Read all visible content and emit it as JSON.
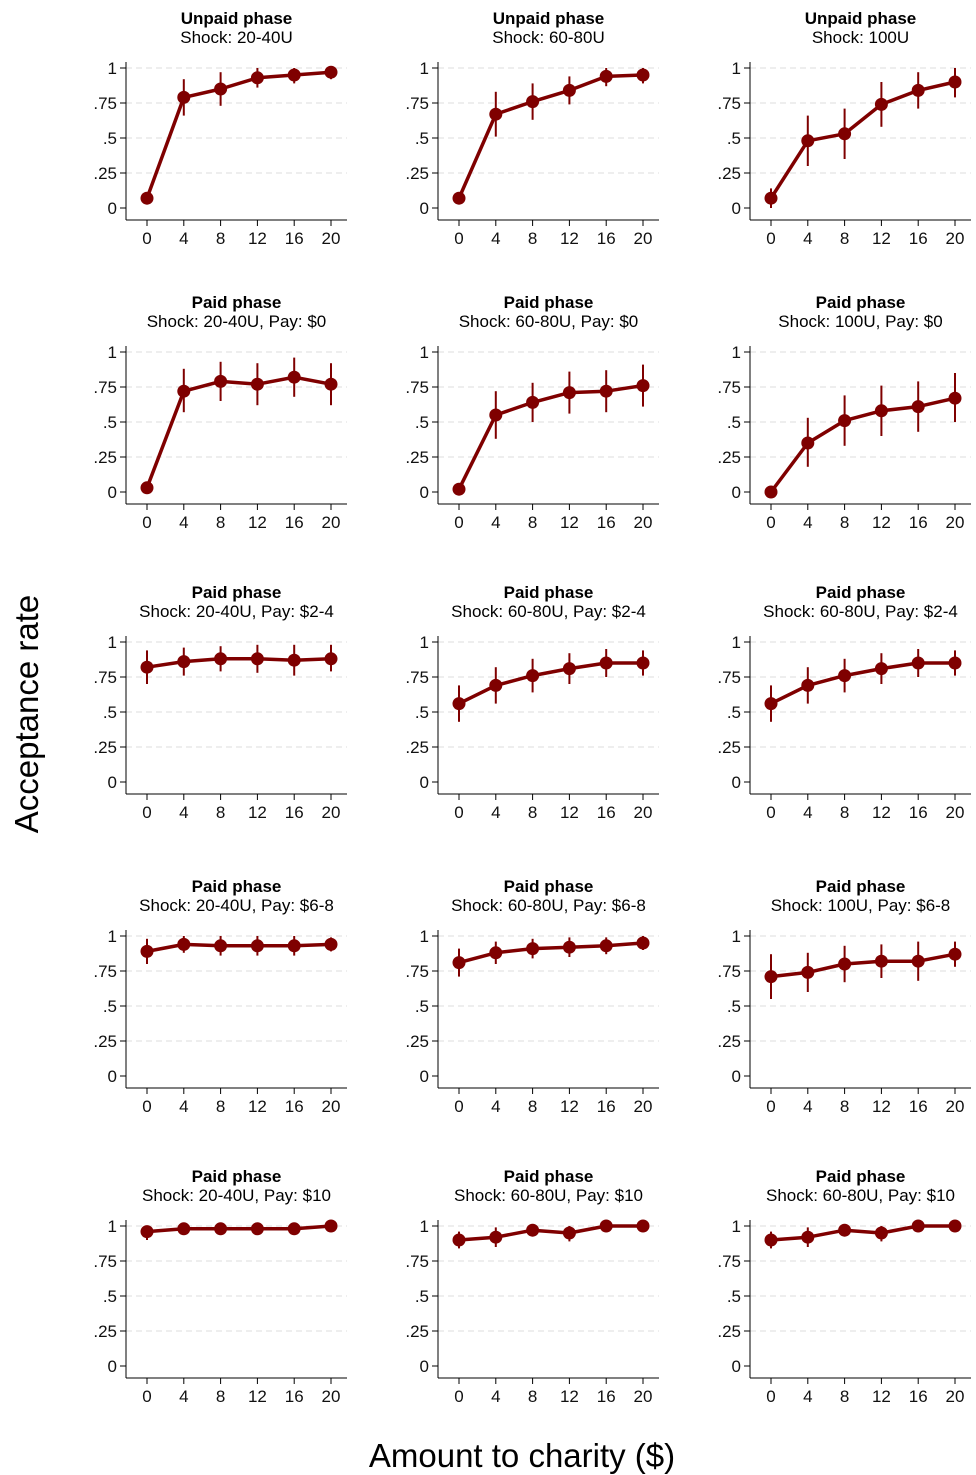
{
  "figure": {
    "y_axis_title": "Acceptance rate",
    "x_axis_title": "Amount to charity ($)",
    "series_color": "#7f0000",
    "grid_color": "#dddddd"
  },
  "chart_data": [
    {
      "type": "line",
      "title": "Unpaid phase",
      "subtitle": "Shock: 20-40U",
      "x": [
        0,
        4,
        8,
        12,
        16,
        20
      ],
      "yticks": [
        "0",
        ".25",
        ".5",
        ".75",
        "1"
      ],
      "ylim": [
        0,
        1
      ],
      "series": [
        {
          "values": [
            0.07,
            0.79,
            0.85,
            0.93,
            0.95,
            0.97
          ],
          "ci_low": [
            0.03,
            0.66,
            0.73,
            0.86,
            0.89,
            0.92
          ],
          "ci_high": [
            0.11,
            0.92,
            0.97,
            1.0,
            1.0,
            1.0
          ]
        }
      ],
      "grid": true
    },
    {
      "type": "line",
      "title": "Unpaid phase",
      "subtitle": "Shock: 60-80U",
      "x": [
        0,
        4,
        8,
        12,
        16,
        20
      ],
      "yticks": [
        "0",
        ".25",
        ".5",
        ".75",
        "1"
      ],
      "ylim": [
        0,
        1
      ],
      "series": [
        {
          "values": [
            0.07,
            0.67,
            0.76,
            0.84,
            0.94,
            0.95
          ],
          "ci_low": [
            0.03,
            0.51,
            0.63,
            0.74,
            0.87,
            0.89
          ],
          "ci_high": [
            0.11,
            0.83,
            0.89,
            0.94,
            1.0,
            1.0
          ]
        }
      ],
      "grid": true
    },
    {
      "type": "line",
      "title": "Unpaid phase",
      "subtitle": "Shock: 100U",
      "x": [
        0,
        4,
        8,
        12,
        16,
        20
      ],
      "yticks": [
        "0",
        ".25",
        ".5",
        ".75",
        "1"
      ],
      "ylim": [
        0,
        1
      ],
      "series": [
        {
          "values": [
            0.07,
            0.48,
            0.53,
            0.74,
            0.84,
            0.9
          ],
          "ci_low": [
            0.0,
            0.3,
            0.35,
            0.58,
            0.71,
            0.79
          ],
          "ci_high": [
            0.14,
            0.66,
            0.71,
            0.9,
            0.97,
            1.0
          ]
        }
      ],
      "grid": true
    },
    {
      "type": "line",
      "title": "Paid phase",
      "subtitle": "Shock: 20-40U, Pay: $0",
      "x": [
        0,
        4,
        8,
        12,
        16,
        20
      ],
      "yticks": [
        "0",
        ".25",
        ".5",
        ".75",
        "1"
      ],
      "ylim": [
        0,
        1
      ],
      "series": [
        {
          "values": [
            0.03,
            0.72,
            0.79,
            0.77,
            0.82,
            0.77
          ],
          "ci_low": [
            0.0,
            0.57,
            0.65,
            0.62,
            0.68,
            0.62
          ],
          "ci_high": [
            0.06,
            0.88,
            0.93,
            0.92,
            0.96,
            0.92
          ]
        }
      ],
      "grid": true
    },
    {
      "type": "line",
      "title": "Paid phase",
      "subtitle": "Shock: 60-80U, Pay: $0",
      "x": [
        0,
        4,
        8,
        12,
        16,
        20
      ],
      "yticks": [
        "0",
        ".25",
        ".5",
        ".75",
        "1"
      ],
      "ylim": [
        0,
        1
      ],
      "series": [
        {
          "values": [
            0.02,
            0.55,
            0.64,
            0.71,
            0.72,
            0.76
          ],
          "ci_low": [
            0.0,
            0.38,
            0.5,
            0.56,
            0.57,
            0.61
          ],
          "ci_high": [
            0.04,
            0.72,
            0.78,
            0.86,
            0.87,
            0.91
          ]
        }
      ],
      "grid": true
    },
    {
      "type": "line",
      "title": "Paid phase",
      "subtitle": "Shock: 100U, Pay: $0",
      "x": [
        0,
        4,
        8,
        12,
        16,
        20
      ],
      "yticks": [
        "0",
        ".25",
        ".5",
        ".75",
        "1"
      ],
      "ylim": [
        0,
        1
      ],
      "series": [
        {
          "values": [
            0.0,
            0.35,
            0.51,
            0.58,
            0.61,
            0.67
          ],
          "ci_low": [
            0.0,
            0.18,
            0.33,
            0.4,
            0.43,
            0.5
          ],
          "ci_high": [
            0.0,
            0.53,
            0.69,
            0.76,
            0.79,
            0.85
          ]
        }
      ],
      "grid": true
    },
    {
      "type": "line",
      "title": "Paid phase",
      "subtitle": "Shock: 20-40U, Pay: $2-4",
      "x": [
        0,
        4,
        8,
        12,
        16,
        20
      ],
      "yticks": [
        "0",
        ".25",
        ".5",
        ".75",
        "1"
      ],
      "ylim": [
        0,
        1
      ],
      "series": [
        {
          "values": [
            0.82,
            0.86,
            0.88,
            0.88,
            0.87,
            0.88
          ],
          "ci_low": [
            0.7,
            0.76,
            0.79,
            0.78,
            0.76,
            0.79
          ],
          "ci_high": [
            0.94,
            0.96,
            0.97,
            0.98,
            0.98,
            0.98
          ]
        }
      ],
      "grid": true
    },
    {
      "type": "line",
      "title": "Paid phase",
      "subtitle": "Shock: 60-80U, Pay: $2-4",
      "x": [
        0,
        4,
        8,
        12,
        16,
        20
      ],
      "yticks": [
        "0",
        ".25",
        ".5",
        ".75",
        "1"
      ],
      "ylim": [
        0,
        1
      ],
      "series": [
        {
          "values": [
            0.56,
            0.69,
            0.76,
            0.81,
            0.85,
            0.85
          ],
          "ci_low": [
            0.43,
            0.56,
            0.64,
            0.7,
            0.75,
            0.76
          ],
          "ci_high": [
            0.69,
            0.82,
            0.88,
            0.92,
            0.95,
            0.94
          ]
        }
      ],
      "grid": true
    },
    {
      "type": "line",
      "title": "Paid phase",
      "subtitle": "Shock: 60-80U, Pay: $2-4",
      "x": [
        0,
        4,
        8,
        12,
        16,
        20
      ],
      "yticks": [
        "0",
        ".25",
        ".5",
        ".75",
        "1"
      ],
      "ylim": [
        0,
        1
      ],
      "series": [
        {
          "values": [
            0.56,
            0.69,
            0.76,
            0.81,
            0.85,
            0.85
          ],
          "ci_low": [
            0.43,
            0.56,
            0.64,
            0.7,
            0.75,
            0.76
          ],
          "ci_high": [
            0.69,
            0.82,
            0.88,
            0.92,
            0.95,
            0.94
          ]
        }
      ],
      "grid": true
    },
    {
      "type": "line",
      "title": "Paid phase",
      "subtitle": "Shock: 20-40U, Pay: $6-8",
      "x": [
        0,
        4,
        8,
        12,
        16,
        20
      ],
      "yticks": [
        "0",
        ".25",
        ".5",
        ".75",
        "1"
      ],
      "ylim": [
        0,
        1
      ],
      "series": [
        {
          "values": [
            0.89,
            0.94,
            0.93,
            0.93,
            0.93,
            0.94
          ],
          "ci_low": [
            0.8,
            0.88,
            0.86,
            0.86,
            0.86,
            0.89
          ],
          "ci_high": [
            0.98,
            1.0,
            1.0,
            1.0,
            1.0,
            0.99
          ]
        }
      ],
      "grid": true
    },
    {
      "type": "line",
      "title": "Paid phase",
      "subtitle": "Shock: 60-80U, Pay: $6-8",
      "x": [
        0,
        4,
        8,
        12,
        16,
        20
      ],
      "yticks": [
        "0",
        ".25",
        ".5",
        ".75",
        "1"
      ],
      "ylim": [
        0,
        1
      ],
      "series": [
        {
          "values": [
            0.81,
            0.88,
            0.91,
            0.92,
            0.93,
            0.95
          ],
          "ci_low": [
            0.71,
            0.8,
            0.84,
            0.85,
            0.87,
            0.9
          ],
          "ci_high": [
            0.91,
            0.96,
            0.98,
            0.99,
            0.99,
            1.0
          ]
        }
      ],
      "grid": true
    },
    {
      "type": "line",
      "title": "Paid phase",
      "subtitle": "Shock: 100U, Pay: $6-8",
      "x": [
        0,
        4,
        8,
        12,
        16,
        20
      ],
      "yticks": [
        "0",
        ".25",
        ".5",
        ".75",
        "1"
      ],
      "ylim": [
        0,
        1
      ],
      "series": [
        {
          "values": [
            0.71,
            0.74,
            0.8,
            0.82,
            0.82,
            0.87
          ],
          "ci_low": [
            0.55,
            0.6,
            0.67,
            0.7,
            0.68,
            0.78
          ],
          "ci_high": [
            0.87,
            0.88,
            0.93,
            0.94,
            0.96,
            0.96
          ]
        }
      ],
      "grid": true
    },
    {
      "type": "line",
      "title": "Paid phase",
      "subtitle": "Shock: 20-40U, Pay: $10",
      "x": [
        0,
        4,
        8,
        12,
        16,
        20
      ],
      "yticks": [
        "0",
        ".25",
        ".5",
        ".75",
        "1"
      ],
      "ylim": [
        0,
        1
      ],
      "series": [
        {
          "values": [
            0.96,
            0.98,
            0.98,
            0.98,
            0.98,
            1.0
          ],
          "ci_low": [
            0.9,
            0.95,
            0.95,
            0.95,
            0.95,
            0.99
          ],
          "ci_high": [
            1.0,
            1.0,
            1.0,
            1.0,
            1.0,
            1.0
          ]
        }
      ],
      "grid": true
    },
    {
      "type": "line",
      "title": "Paid phase",
      "subtitle": "Shock: 60-80U, Pay: $10",
      "x": [
        0,
        4,
        8,
        12,
        16,
        20
      ],
      "yticks": [
        "0",
        ".25",
        ".5",
        ".75",
        "1"
      ],
      "ylim": [
        0,
        1
      ],
      "series": [
        {
          "values": [
            0.9,
            0.92,
            0.97,
            0.95,
            1.0,
            1.0
          ],
          "ci_low": [
            0.84,
            0.85,
            0.93,
            0.89,
            0.99,
            0.99
          ],
          "ci_high": [
            0.96,
            0.99,
            1.0,
            1.0,
            1.0,
            1.0
          ]
        }
      ],
      "grid": true
    },
    {
      "type": "line",
      "title": "Paid phase",
      "subtitle": "Shock: 60-80U, Pay: $10",
      "x": [
        0,
        4,
        8,
        12,
        16,
        20
      ],
      "yticks": [
        "0",
        ".25",
        ".5",
        ".75",
        "1"
      ],
      "ylim": [
        0,
        1
      ],
      "series": [
        {
          "values": [
            0.9,
            0.92,
            0.97,
            0.95,
            1.0,
            1.0
          ],
          "ci_low": [
            0.84,
            0.85,
            0.93,
            0.89,
            0.99,
            0.99
          ],
          "ci_high": [
            0.96,
            0.99,
            1.0,
            1.0,
            1.0,
            1.0
          ]
        }
      ],
      "grid": true
    }
  ]
}
